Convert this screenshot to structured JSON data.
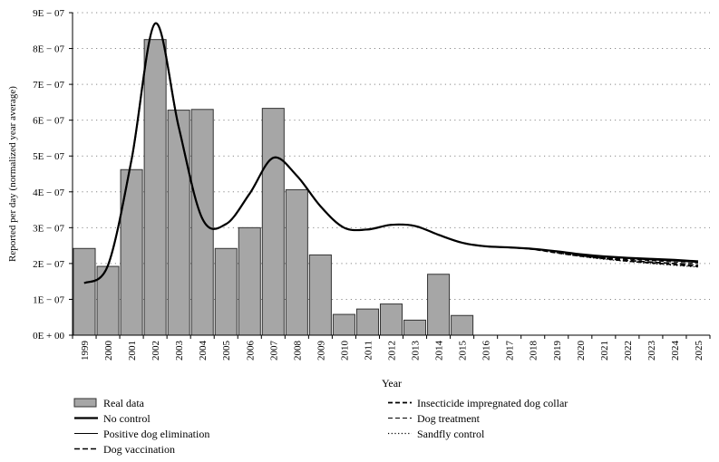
{
  "chart_data": {
    "type": "bar",
    "xlabel": "Year",
    "ylabel": "Reported per day (normalized year average)",
    "ylim": [
      0,
      9e-07
    ],
    "y_ticks": [
      {
        "v": 0,
        "label": "0E + 00"
      },
      {
        "v": 1e-07,
        "label": "1E − 07"
      },
      {
        "v": 2e-07,
        "label": "2E − 07"
      },
      {
        "v": 3e-07,
        "label": "3E − 07"
      },
      {
        "v": 4e-07,
        "label": "4E − 07"
      },
      {
        "v": 5e-07,
        "label": "5E − 07"
      },
      {
        "v": 6e-07,
        "label": "6E − 07"
      },
      {
        "v": 7e-07,
        "label": "7E − 07"
      },
      {
        "v": 8e-07,
        "label": "8E − 07"
      },
      {
        "v": 9e-07,
        "label": "9E − 07"
      }
    ],
    "grid": "horizontal dotted",
    "legend_position": "bottom",
    "categories": [
      "1999",
      "2000",
      "2001",
      "2002",
      "2003",
      "2004",
      "2005",
      "2006",
      "2007",
      "2008",
      "2009",
      "2010",
      "2011",
      "2012",
      "2013",
      "2014",
      "2015",
      "2016",
      "2017",
      "2018",
      "2019",
      "2020",
      "2021",
      "2022",
      "2023",
      "2024",
      "2025"
    ],
    "series": [
      {
        "name": "Real data",
        "kind": "bar",
        "color": "#a6a6a6",
        "values": [
          2.42e-07,
          1.92e-07,
          4.62e-07,
          8.25e-07,
          6.28e-07,
          6.3e-07,
          2.42e-07,
          3e-07,
          6.33e-07,
          4.06e-07,
          2.24e-07,
          5.8e-08,
          7.3e-08,
          8.7e-08,
          4.2e-08,
          1.7e-07,
          5.5e-08,
          null,
          null,
          null,
          null,
          null,
          null,
          null,
          null,
          null,
          null
        ]
      },
      {
        "name": "No control",
        "kind": "line",
        "style": "thick-solid",
        "values": [
          1.45e-07,
          1.95e-07,
          4.9e-07,
          8.7e-07,
          5.8e-07,
          3.25e-07,
          3.1e-07,
          3.95e-07,
          4.95e-07,
          4.45e-07,
          3.6e-07,
          3e-07,
          2.95e-07,
          3.08e-07,
          3.05e-07,
          2.8e-07,
          2.58e-07,
          2.48e-07,
          2.45e-07,
          2.41e-07,
          2.34e-07,
          2.26e-07,
          2.2e-07,
          2.16e-07,
          2.13e-07,
          2.1e-07,
          2.06e-07
        ]
      },
      {
        "name": "Positive dog elimination",
        "kind": "line",
        "style": "thin-solid",
        "values": [
          1.45e-07,
          1.95e-07,
          4.9e-07,
          8.7e-07,
          5.8e-07,
          3.25e-07,
          3.1e-07,
          3.95e-07,
          4.95e-07,
          4.45e-07,
          3.6e-07,
          3e-07,
          2.95e-07,
          3.08e-07,
          3.05e-07,
          2.8e-07,
          2.58e-07,
          2.48e-07,
          2.45e-07,
          2.41e-07,
          2.33e-07,
          2.25e-07,
          2.19e-07,
          2.14e-07,
          2.1e-07,
          2.07e-07,
          2.03e-07
        ]
      },
      {
        "name": "Dog vaccination",
        "kind": "line",
        "style": "dashed",
        "values": [
          1.45e-07,
          1.95e-07,
          4.9e-07,
          8.7e-07,
          5.8e-07,
          3.25e-07,
          3.1e-07,
          3.95e-07,
          4.95e-07,
          4.45e-07,
          3.6e-07,
          3e-07,
          2.95e-07,
          3.08e-07,
          3.05e-07,
          2.8e-07,
          2.58e-07,
          2.48e-07,
          2.45e-07,
          2.4e-07,
          2.31e-07,
          2.22e-07,
          2.15e-07,
          2.09e-07,
          2.04e-07,
          2e-07,
          1.95e-07
        ]
      },
      {
        "name": "Insecticide impregnated dog collar",
        "kind": "line",
        "style": "thick-dashed",
        "values": [
          1.45e-07,
          1.95e-07,
          4.9e-07,
          8.7e-07,
          5.8e-07,
          3.25e-07,
          3.1e-07,
          3.95e-07,
          4.95e-07,
          4.45e-07,
          3.6e-07,
          3e-07,
          2.95e-07,
          3.08e-07,
          3.05e-07,
          2.8e-07,
          2.58e-07,
          2.48e-07,
          2.45e-07,
          2.4e-07,
          2.3e-07,
          2.21e-07,
          2.14e-07,
          2.07e-07,
          2.02e-07,
          1.97e-07,
          1.92e-07
        ]
      },
      {
        "name": "Dog treatment",
        "kind": "line",
        "style": "thin-dashed",
        "values": [
          1.45e-07,
          1.95e-07,
          4.9e-07,
          8.7e-07,
          5.8e-07,
          3.25e-07,
          3.1e-07,
          3.95e-07,
          4.95e-07,
          4.45e-07,
          3.6e-07,
          3e-07,
          2.95e-07,
          3.08e-07,
          3.05e-07,
          2.8e-07,
          2.58e-07,
          2.48e-07,
          2.45e-07,
          2.41e-07,
          2.32e-07,
          2.24e-07,
          2.17e-07,
          2.12e-07,
          2.08e-07,
          2.04e-07,
          2e-07
        ]
      },
      {
        "name": "Sandfly control",
        "kind": "line",
        "style": "dotted",
        "values": [
          1.45e-07,
          1.95e-07,
          4.9e-07,
          8.7e-07,
          5.8e-07,
          3.25e-07,
          3.1e-07,
          3.95e-07,
          4.95e-07,
          4.45e-07,
          3.6e-07,
          3e-07,
          2.95e-07,
          3.08e-07,
          3.05e-07,
          2.8e-07,
          2.58e-07,
          2.48e-07,
          2.45e-07,
          2.4e-07,
          2.3e-07,
          2.2e-07,
          2.12e-07,
          2.06e-07,
          2e-07,
          1.95e-07,
          1.9e-07
        ]
      }
    ]
  }
}
